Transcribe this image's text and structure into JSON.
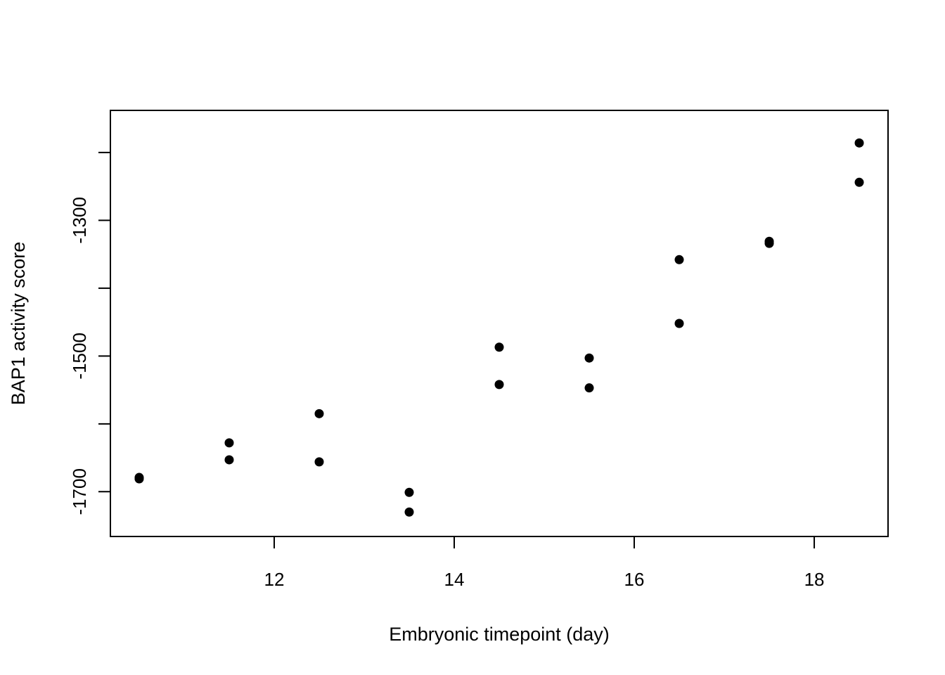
{
  "chart_data": {
    "type": "scatter",
    "title": "",
    "xlabel": "Embryonic timepoint (day)",
    "ylabel": "BAP1 activity score",
    "x_ticks": [
      12,
      14,
      16,
      18
    ],
    "y_ticks": [
      -1700,
      -1500,
      -1300
    ],
    "y_tick_labels": [
      "-1700",
      "-1500",
      "-1300"
    ],
    "xlim": [
      10.18,
      18.82
    ],
    "ylim": [
      -1766,
      -1138
    ],
    "grid": false,
    "legend": "none",
    "marker_color": "#000000",
    "series": [
      {
        "x": [
          10.5,
          10.5,
          11.5,
          11.5,
          12.5,
          12.5,
          13.5,
          13.5,
          14.5,
          14.5,
          15.5,
          15.5,
          16.5,
          16.5,
          17.5,
          17.5,
          18.5,
          18.5
        ],
        "y": [
          -1679,
          -1681,
          -1628,
          -1653,
          -1585,
          -1656,
          -1701,
          -1730,
          -1542,
          -1487,
          -1547,
          -1503,
          -1358,
          -1452,
          -1334,
          -1331,
          -1186,
          -1244
        ]
      }
    ]
  }
}
